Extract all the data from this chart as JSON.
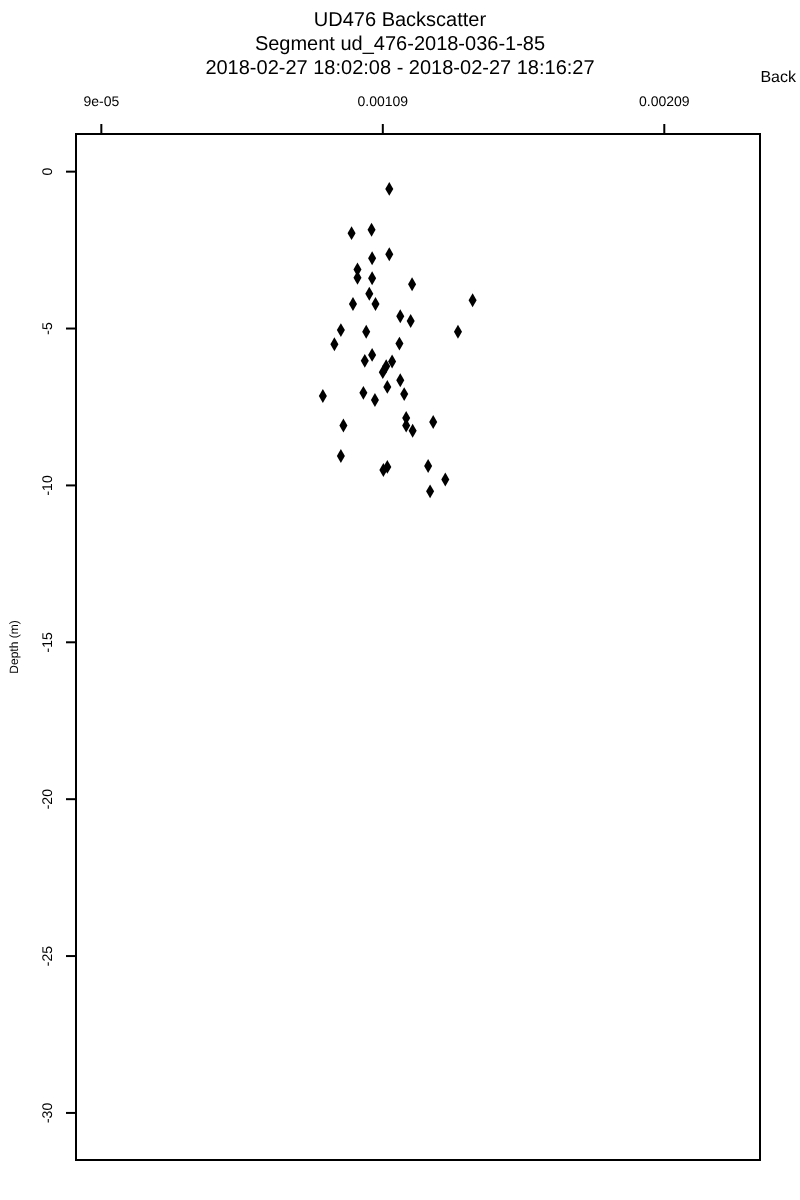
{
  "chart_data": {
    "type": "scatter",
    "title": "UD476 Backscatter",
    "subtitle": "Segment ud_476-2018-036-1-85\n2018-02-27 18:02:08 - 2018-02-27 18:16:27",
    "xlabel": "Back",
    "ylabel": "Depth (m)",
    "marker": "diamond",
    "grid": false,
    "xlim": [
      0,
      0.00243
    ],
    "xticks": [
      {
        "value": 9e-05,
        "label": "9e-05"
      },
      0.00109,
      0.00209
    ],
    "ylim": [
      -31.5,
      1.2
    ],
    "yticks": [
      0,
      -5,
      -10,
      -15,
      -20,
      -25,
      -30
    ],
    "series": [
      {
        "color": "#000000",
        "x": [
          0.001113,
          0.000979,
          0.00105,
          0.001113,
          0.001052,
          0.001,
          0.001,
          0.001052,
          0.001194,
          0.001409,
          0.001042,
          0.000984,
          0.001064,
          0.001152,
          0.001189,
          0.000941,
          0.001031,
          0.001357,
          0.000918,
          0.001149,
          0.001052,
          0.001026,
          0.001123,
          0.001102,
          0.00109,
          0.001152,
          0.001106,
          0.000877,
          0.001021,
          0.001062,
          0.001166,
          0.00095,
          0.001173,
          0.001173,
          0.001196,
          0.001269,
          0.000941,
          0.001106,
          0.001092,
          0.001251,
          0.001312,
          0.001258
        ],
        "values": [
          -0.55,
          -1.96,
          -1.85,
          -2.63,
          -2.76,
          -3.12,
          -3.38,
          -3.4,
          -3.59,
          -4.1,
          -3.89,
          -4.22,
          -4.22,
          -4.61,
          -4.76,
          -5.05,
          -5.1,
          -5.1,
          -5.5,
          -5.48,
          -5.84,
          -6.03,
          -6.05,
          -6.2,
          -6.39,
          -6.65,
          -6.86,
          -7.15,
          -7.05,
          -7.28,
          -7.09,
          -8.09,
          -7.85,
          -8.09,
          -8.26,
          -7.98,
          -9.06,
          -9.41,
          -9.51,
          -9.38,
          -9.81,
          -10.19
        ]
      }
    ]
  }
}
